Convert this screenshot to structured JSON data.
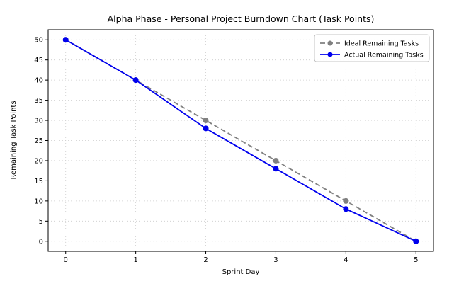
{
  "chart_data": {
    "type": "line",
    "title": "Alpha Phase - Personal Project Burndown Chart (Task Points)",
    "xlabel": "Sprint Day",
    "ylabel": "Remaining Task Points",
    "x": [
      0,
      1,
      2,
      3,
      4,
      5
    ],
    "series": [
      {
        "name": "Ideal Remaining Tasks",
        "values": [
          50,
          40,
          30,
          20,
          10,
          0
        ],
        "color": "#808080",
        "dash": "7 4",
        "marker": "circle"
      },
      {
        "name": "Actual Remaining Tasks",
        "values": [
          50,
          40,
          28,
          18,
          8,
          0
        ],
        "color": "#0000ee",
        "dash": null,
        "marker": "circle"
      }
    ],
    "xlim": [
      -0.25,
      5.25
    ],
    "ylim": [
      -2.5,
      52.5
    ],
    "xticks": [
      0,
      1,
      2,
      3,
      4,
      5
    ],
    "yticks": [
      0,
      5,
      10,
      15,
      20,
      25,
      30,
      35,
      40,
      45,
      50
    ],
    "grid": true,
    "grid_color": "#cccccc",
    "background": "#ffffff",
    "legend_position": "upper right"
  }
}
